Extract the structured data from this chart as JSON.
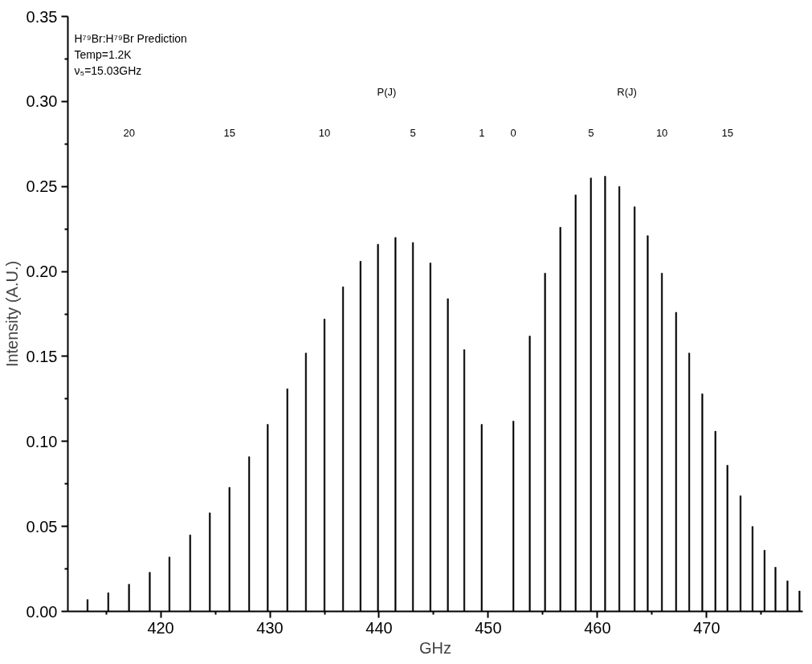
{
  "chart_data": {
    "type": "bar",
    "xlabel": "GHz",
    "ylabel": "Intensity (A.U.)",
    "x": [
      413.3,
      415.2,
      417.1,
      419.0,
      420.8,
      422.7,
      424.5,
      426.3,
      428.1,
      429.8,
      431.6,
      433.3,
      435.0,
      436.7,
      438.3,
      439.9,
      441.5,
      443.1,
      444.7,
      446.3,
      447.8,
      449.4,
      452.3,
      453.8,
      455.2,
      456.6,
      458.0,
      459.4,
      460.7,
      462.0,
      463.4,
      464.6,
      465.9,
      467.2,
      468.4,
      469.6,
      470.8,
      471.9,
      473.1,
      474.2,
      475.3,
      476.3,
      477.4,
      478.5
    ],
    "values": [
      0.007,
      0.011,
      0.016,
      0.023,
      0.032,
      0.045,
      0.058,
      0.073,
      0.091,
      0.11,
      0.131,
      0.152,
      0.172,
      0.191,
      0.206,
      0.216,
      0.22,
      0.217,
      0.205,
      0.184,
      0.154,
      0.11,
      0.112,
      0.162,
      0.199,
      0.226,
      0.245,
      0.255,
      0.256,
      0.25,
      0.238,
      0.221,
      0.199,
      0.176,
      0.152,
      0.128,
      0.106,
      0.086,
      0.068,
      0.05,
      0.036,
      0.026,
      0.018,
      0.012
    ],
    "color": "#000000",
    "xlim": [
      411.5,
      478.8
    ],
    "xticks": [
      420,
      430,
      440,
      450,
      460,
      470,
      {
        "value": 415,
        "label": null
      },
      {
        "value": 425,
        "label": null
      },
      {
        "value": 435,
        "label": null
      },
      {
        "value": 445,
        "label": null
      },
      {
        "value": 455,
        "label": null
      },
      {
        "value": 465,
        "label": null
      },
      {
        "value": 475,
        "label": null
      }
    ],
    "ylim": [
      0,
      0.35
    ],
    "yticks": [
      {
        "value": 0,
        "label": "0.00"
      },
      {
        "value": 0.05,
        "label": "0.05"
      },
      {
        "value": 0.1,
        "label": "0.10"
      },
      {
        "value": 0.15,
        "label": "0.15"
      },
      {
        "value": 0.2,
        "label": "0.20"
      },
      {
        "value": 0.25,
        "label": "0.25"
      },
      {
        "value": 0.3,
        "label": "0.30"
      },
      {
        "value": 0.35,
        "label": "0.35"
      },
      {
        "value": 0.025,
        "label": null
      },
      {
        "value": 0.075,
        "label": null
      },
      {
        "value": 0.125,
        "label": null
      },
      {
        "value": 0.175,
        "label": null
      },
      {
        "value": 0.225,
        "label": null
      },
      {
        "value": 0.275,
        "label": null
      },
      {
        "value": 0.325,
        "label": null
      }
    ],
    "annotations": [
      "H⁷⁹Br:H⁷⁹Br Prediction",
      "Temp=1.2K",
      "ν₅=15.03GHz",
      "P(J)",
      "R(J)",
      "20",
      "15",
      "10",
      "5",
      "1",
      "0",
      "5",
      "10",
      "15"
    ],
    "grid": false
  }
}
